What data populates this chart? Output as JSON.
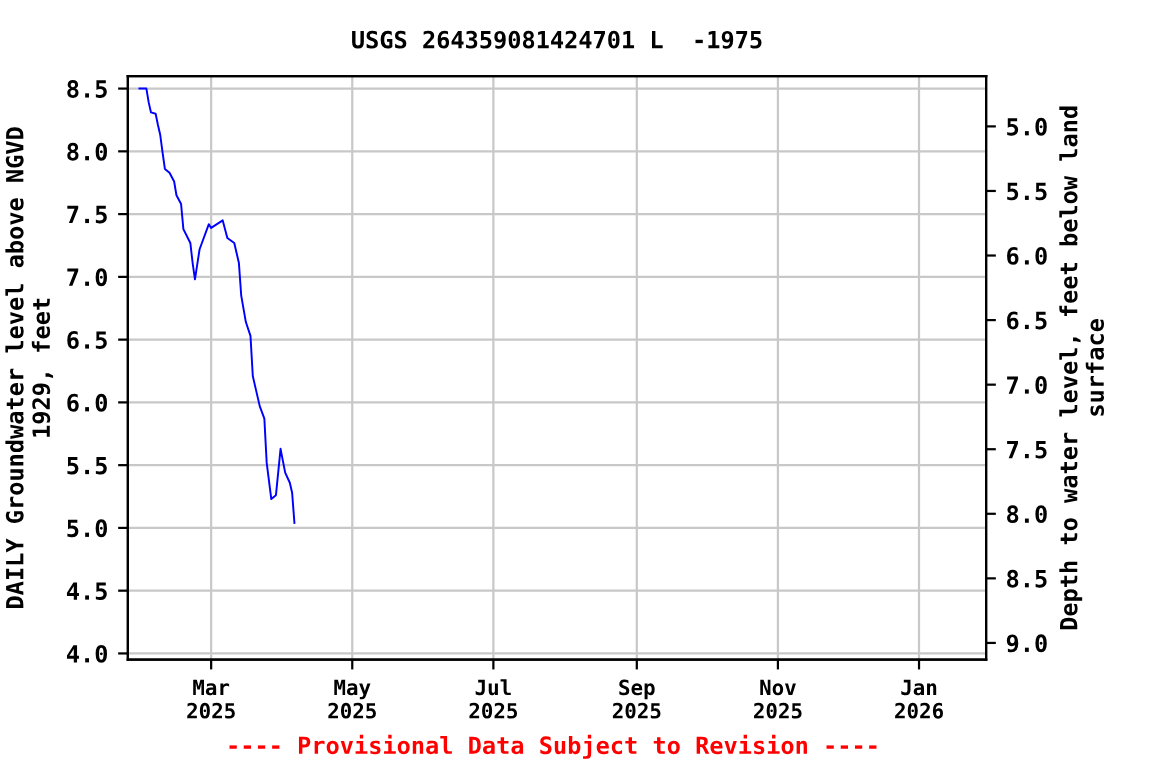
{
  "chart_data": {
    "type": "line",
    "title": "USGS 264359081424701 L  -1975",
    "ylabel": "DAILY Groundwater level above NGVD\n1929, feet",
    "y2label": "Depth to water level, feet below land\nsurface",
    "x": [
      "2025-01-29",
      "2025-02-01",
      "2025-02-02",
      "2025-02-03",
      "2025-02-05",
      "2025-02-06",
      "2025-02-07",
      "2025-02-08",
      "2025-02-09",
      "2025-02-11",
      "2025-02-13",
      "2025-02-14",
      "2025-02-16",
      "2025-02-17",
      "2025-02-20",
      "2025-02-21",
      "2025-02-22",
      "2025-02-24",
      "2025-02-25",
      "2025-02-28",
      "2025-03-01",
      "2025-03-06",
      "2025-03-08",
      "2025-03-11",
      "2025-03-13",
      "2025-03-14",
      "2025-03-16",
      "2025-03-18",
      "2025-03-19",
      "2025-03-21",
      "2025-03-22",
      "2025-03-24",
      "2025-03-25",
      "2025-03-27",
      "2025-03-29",
      "2025-03-31",
      "2025-04-02",
      "2025-04-04",
      "2025-04-05",
      "2025-04-06"
    ],
    "series": [
      {
        "color": "#0000ff",
        "values": [
          8.5,
          8.5,
          8.39,
          8.31,
          8.3,
          8.21,
          8.13,
          7.99,
          7.86,
          7.83,
          7.76,
          7.65,
          7.58,
          7.38,
          7.27,
          7.11,
          6.98,
          7.22,
          7.27,
          7.42,
          7.39,
          7.45,
          7.31,
          7.27,
          7.11,
          6.85,
          6.64,
          6.53,
          6.21,
          6.05,
          5.97,
          5.87,
          5.52,
          5.23,
          5.26,
          5.63,
          5.44,
          5.36,
          5.28,
          5.04
        ]
      }
    ],
    "xlim": [
      "2025-01-24",
      "2026-01-30"
    ],
    "xticks": [
      {
        "value": "2025-03-01",
        "label": "Mar\n2025"
      },
      {
        "value": "2025-05-01",
        "label": "May\n2025"
      },
      {
        "value": "2025-07-01",
        "label": "Jul\n2025"
      },
      {
        "value": "2025-09-01",
        "label": "Sep\n2025"
      },
      {
        "value": "2025-11-01",
        "label": "Nov\n2025"
      },
      {
        "value": "2026-01-01",
        "label": "Jan\n2026"
      }
    ],
    "ylim": [
      3.95,
      8.6
    ],
    "yticks": [
      {
        "value": 4,
        "label": "4.0"
      },
      4.5,
      {
        "value": 5,
        "label": "5.0"
      },
      5.5,
      {
        "value": 6,
        "label": "6.0"
      },
      6.5,
      {
        "value": 7,
        "label": "7.0"
      },
      7.5,
      {
        "value": 8,
        "label": "8.0"
      },
      8.5
    ],
    "y2lim": [
      9.13,
      4.61
    ],
    "y2ticks": [
      {
        "value": 5,
        "label": "5.0"
      },
      5.5,
      {
        "value": 6,
        "label": "6.0"
      },
      6.5,
      {
        "value": 7,
        "label": "7.0"
      },
      7.5,
      {
        "value": 8,
        "label": "8.0"
      },
      8.5,
      {
        "value": 9,
        "label": "9.0"
      }
    ],
    "grid": true,
    "legend": false,
    "marker": "none",
    "line_style": "solid",
    "annotations": [
      "---- Provisional Data Subject to Revision ----"
    ]
  }
}
